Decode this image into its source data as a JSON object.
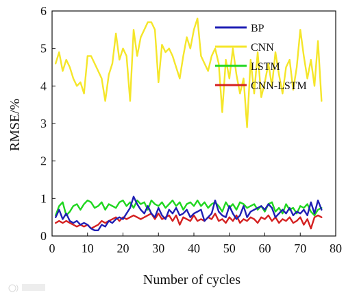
{
  "chart_data": {
    "type": "line",
    "xlabel": "Number of cycles",
    "ylabel": "RMSE/%",
    "xlim": [
      0,
      80
    ],
    "ylim": [
      0,
      6
    ],
    "xticks": [
      0,
      10,
      20,
      30,
      40,
      50,
      60,
      70,
      80
    ],
    "yticks": [
      0,
      1,
      2,
      3,
      4,
      5,
      6
    ],
    "grid": false,
    "legend_position": "top-right",
    "series": [
      {
        "name": "BP",
        "color": "#1f1fb4",
        "x": [
          1,
          2,
          3,
          4,
          5,
          6,
          7,
          8,
          9,
          10,
          11,
          12,
          13,
          14,
          15,
          16,
          17,
          18,
          19,
          20,
          21,
          22,
          23,
          24,
          25,
          26,
          27,
          28,
          29,
          30,
          31,
          32,
          33,
          34,
          35,
          36,
          37,
          38,
          39,
          40,
          41,
          42,
          43,
          44,
          45,
          46,
          47,
          48,
          49,
          50,
          51,
          52,
          53,
          54,
          55,
          56,
          57,
          58,
          59,
          60,
          61,
          62,
          63,
          64,
          65,
          66,
          67,
          68,
          69,
          70,
          71,
          72,
          73,
          74,
          75,
          76
        ],
        "values": [
          0.5,
          0.7,
          0.45,
          0.6,
          0.4,
          0.35,
          0.4,
          0.3,
          0.35,
          0.3,
          0.2,
          0.15,
          0.15,
          0.3,
          0.25,
          0.4,
          0.35,
          0.45,
          0.5,
          0.45,
          0.6,
          0.75,
          1.05,
          0.85,
          0.7,
          0.6,
          0.8,
          0.6,
          0.5,
          0.75,
          0.55,
          0.45,
          0.7,
          0.6,
          0.75,
          0.55,
          0.6,
          0.7,
          0.5,
          0.6,
          0.65,
          0.7,
          0.4,
          0.5,
          0.6,
          0.95,
          0.65,
          0.55,
          0.5,
          0.8,
          0.6,
          0.45,
          0.55,
          0.8,
          0.5,
          0.65,
          0.7,
          0.75,
          0.8,
          0.7,
          0.85,
          0.75,
          0.5,
          0.6,
          0.7,
          0.6,
          0.75,
          0.55,
          0.65,
          0.6,
          0.7,
          0.55,
          0.9,
          0.6,
          0.95,
          0.7
        ]
      },
      {
        "name": "CNN",
        "color": "#f5e62a",
        "x": [
          1,
          2,
          3,
          4,
          5,
          6,
          7,
          8,
          9,
          10,
          11,
          12,
          13,
          14,
          15,
          16,
          17,
          18,
          19,
          20,
          21,
          22,
          23,
          24,
          25,
          26,
          27,
          28,
          29,
          30,
          31,
          32,
          33,
          34,
          35,
          36,
          37,
          38,
          39,
          40,
          41,
          42,
          43,
          44,
          45,
          46,
          47,
          48,
          49,
          50,
          51,
          52,
          53,
          54,
          55,
          56,
          57,
          58,
          59,
          60,
          61,
          62,
          63,
          64,
          65,
          66,
          67,
          68,
          69,
          70,
          71,
          72,
          73,
          74,
          75,
          76
        ],
        "values": [
          4.6,
          4.9,
          4.4,
          4.7,
          4.5,
          4.2,
          4.0,
          4.1,
          3.8,
          4.8,
          4.8,
          4.6,
          4.4,
          4.2,
          3.6,
          4.3,
          4.6,
          5.4,
          4.7,
          5.0,
          4.8,
          3.6,
          5.5,
          4.8,
          5.3,
          5.5,
          5.7,
          5.7,
          5.5,
          4.1,
          5.1,
          4.9,
          5.0,
          4.8,
          4.5,
          4.2,
          4.8,
          5.3,
          5.0,
          5.5,
          5.8,
          4.8,
          4.6,
          4.4,
          4.8,
          5.0,
          4.6,
          3.3,
          4.7,
          4.2,
          5.0,
          4.3,
          3.8,
          4.2,
          2.9,
          4.7,
          3.8,
          4.9,
          3.7,
          4.1,
          4.6,
          4.0,
          4.9,
          4.3,
          3.8,
          4.5,
          4.7,
          3.9,
          4.5,
          5.5,
          4.8,
          4.2,
          4.7,
          4.0,
          5.2,
          3.6
        ]
      },
      {
        "name": "LSTM",
        "color": "#1fd61f",
        "x": [
          1,
          2,
          3,
          4,
          5,
          6,
          7,
          8,
          9,
          10,
          11,
          12,
          13,
          14,
          15,
          16,
          17,
          18,
          19,
          20,
          21,
          22,
          23,
          24,
          25,
          26,
          27,
          28,
          29,
          30,
          31,
          32,
          33,
          34,
          35,
          36,
          37,
          38,
          39,
          40,
          41,
          42,
          43,
          44,
          45,
          46,
          47,
          48,
          49,
          50,
          51,
          52,
          53,
          54,
          55,
          56,
          57,
          58,
          59,
          60,
          61,
          62,
          63,
          64,
          65,
          66,
          67,
          68,
          69,
          70,
          71,
          72,
          73,
          74,
          75,
          76
        ],
        "values": [
          0.55,
          0.8,
          0.9,
          0.55,
          0.65,
          0.8,
          0.85,
          0.7,
          0.85,
          0.95,
          0.9,
          0.75,
          0.8,
          0.9,
          0.7,
          0.85,
          0.8,
          0.75,
          0.9,
          0.95,
          0.8,
          0.9,
          0.75,
          0.95,
          0.85,
          0.9,
          0.7,
          0.95,
          0.85,
          0.8,
          0.9,
          0.75,
          0.85,
          0.95,
          0.8,
          0.9,
          0.7,
          0.85,
          0.9,
          0.8,
          0.95,
          0.8,
          0.9,
          0.75,
          0.85,
          0.9,
          0.8,
          0.65,
          0.9,
          0.75,
          0.85,
          0.7,
          0.9,
          0.85,
          0.75,
          0.8,
          0.85,
          0.7,
          0.8,
          0.65,
          0.85,
          0.9,
          0.65,
          0.75,
          0.6,
          0.85,
          0.7,
          0.75,
          0.6,
          0.8,
          0.75,
          0.85,
          0.65,
          0.55,
          0.7,
          0.75
        ]
      },
      {
        "name": "CNN-LSTM",
        "color": "#d42020",
        "x": [
          1,
          2,
          3,
          4,
          5,
          6,
          7,
          8,
          9,
          10,
          11,
          12,
          13,
          14,
          15,
          16,
          17,
          18,
          19,
          20,
          21,
          22,
          23,
          24,
          25,
          26,
          27,
          28,
          29,
          30,
          31,
          32,
          33,
          34,
          35,
          36,
          37,
          38,
          39,
          40,
          41,
          42,
          43,
          44,
          45,
          46,
          47,
          48,
          49,
          50,
          51,
          52,
          53,
          54,
          55,
          56,
          57,
          58,
          59,
          60,
          61,
          62,
          63,
          64,
          65,
          66,
          67,
          68,
          69,
          70,
          71,
          72,
          73,
          74,
          75,
          76
        ],
        "values": [
          0.35,
          0.4,
          0.35,
          0.4,
          0.35,
          0.3,
          0.25,
          0.3,
          0.25,
          0.3,
          0.2,
          0.25,
          0.3,
          0.4,
          0.35,
          0.4,
          0.45,
          0.5,
          0.4,
          0.5,
          0.45,
          0.5,
          0.55,
          0.5,
          0.45,
          0.5,
          0.55,
          0.6,
          0.45,
          0.6,
          0.45,
          0.5,
          0.55,
          0.4,
          0.55,
          0.3,
          0.5,
          0.45,
          0.4,
          0.55,
          0.4,
          0.45,
          0.4,
          0.5,
          0.45,
          0.6,
          0.4,
          0.45,
          0.35,
          0.5,
          0.4,
          0.55,
          0.35,
          0.45,
          0.4,
          0.5,
          0.45,
          0.35,
          0.5,
          0.45,
          0.55,
          0.4,
          0.5,
          0.35,
          0.45,
          0.4,
          0.5,
          0.35,
          0.4,
          0.5,
          0.3,
          0.45,
          0.2,
          0.5,
          0.55,
          0.5
        ]
      }
    ]
  }
}
